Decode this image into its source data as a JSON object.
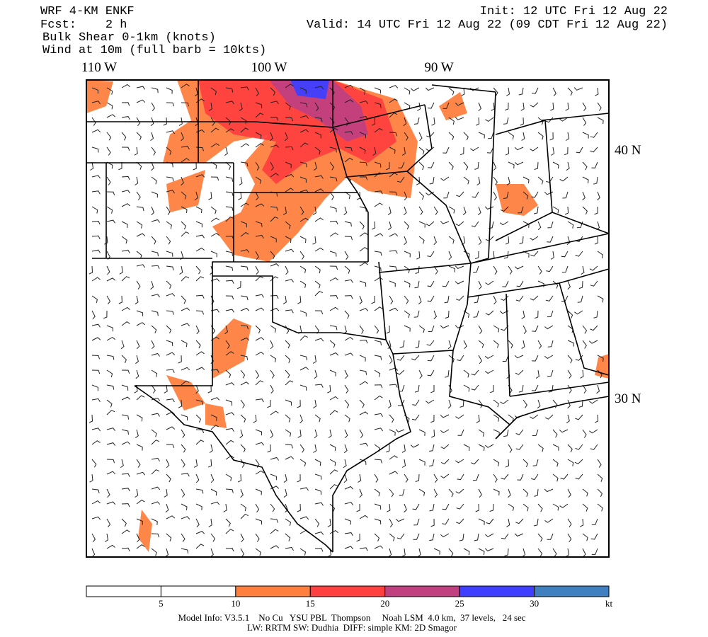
{
  "header": {
    "model": "WRF 4-KM ENKF",
    "forecast": "Fcst:    2 h",
    "field": "Bulk Shear 0-1km (knots)",
    "wind": "Wind at 10m (full barb = 10kts)",
    "init": "Init: 12 UTC Fri 12 Aug 22",
    "valid": "Valid: 14 UTC Fri 12 Aug 22 (09 CDT Fri 12 Aug 22)"
  },
  "map": {
    "lon_labels": [
      "110 W",
      "100 W",
      "90 W"
    ],
    "lat_labels": [
      "40 N",
      "30 N"
    ]
  },
  "colorbar": {
    "colors": [
      "#ffffff",
      "#ffffff",
      "#ff7f3f",
      "#ff4040",
      "#c04080",
      "#3f3fff",
      "#4080c0"
    ],
    "tick_labels": [
      "5",
      "10",
      "15",
      "20",
      "25",
      "30",
      "kt"
    ]
  },
  "footer": {
    "line1": "Model Info: V3.5.1    No Cu   YSU PBL  Thompson     Noah LSM  4.0 km,  37 levels,   24 sec",
    "line2": "LW: RRTM SW: Dudhia  DIFF: simple KM: 2D Smagor"
  }
}
